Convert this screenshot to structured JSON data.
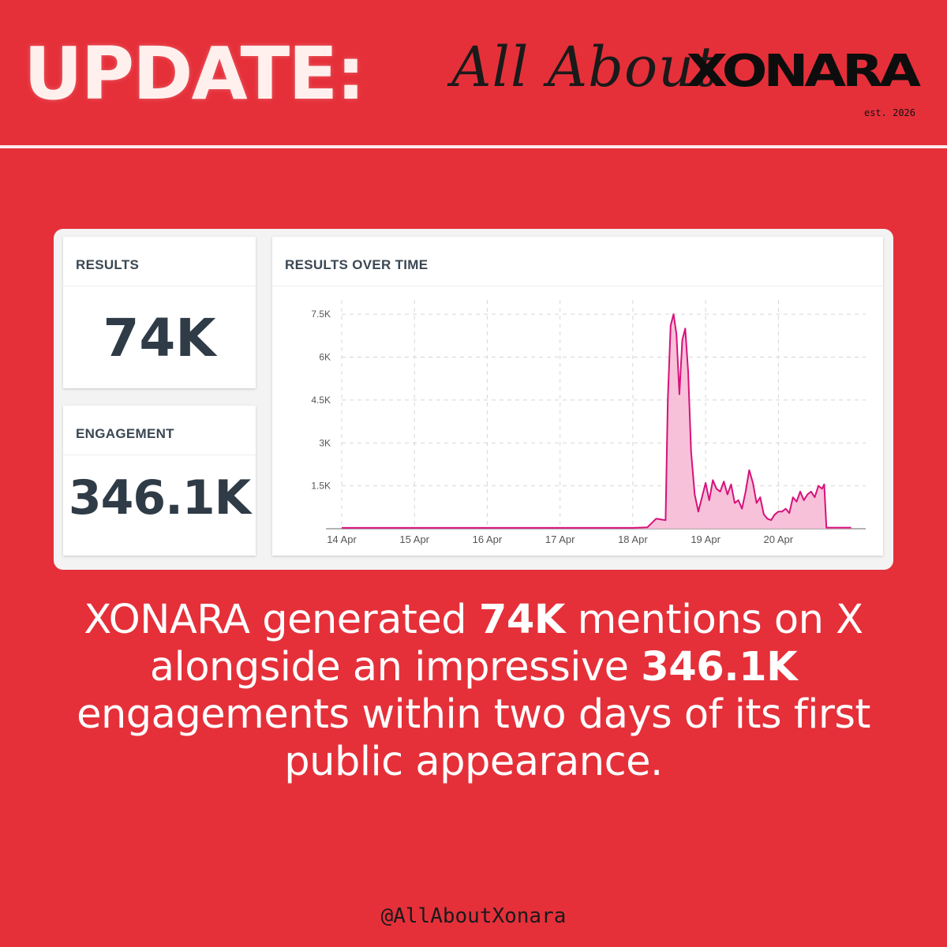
{
  "header": {
    "title": "UPDATE:",
    "brand_script": "All About",
    "brand_logo": "XONARA",
    "brand_est": "est. 2026"
  },
  "cards": {
    "results_label": "RESULTS",
    "results_value": "74K",
    "engagement_label": "ENGAGEMENT",
    "engagement_value": "346.1K"
  },
  "chart_data": {
    "type": "area",
    "title": "RESULTS OVER TIME",
    "xlabel": "",
    "ylabel": "",
    "ylim": [
      0,
      8000
    ],
    "yticks": [
      1500,
      3000,
      4500,
      6000,
      7500
    ],
    "ytick_labels": [
      "1.5K",
      "3K",
      "4.5K",
      "6K",
      "7.5K"
    ],
    "xtick_labels": [
      "14 Apr",
      "15 Apr",
      "16 Apr",
      "17 Apr",
      "18 Apr",
      "19 Apr",
      "20 Apr"
    ],
    "grid": true,
    "color": "#d6127a",
    "fill": "#f7b6d3",
    "x_range": [
      0,
      7.2
    ],
    "x": [
      0,
      4.0,
      4.2,
      4.32,
      4.45,
      4.48,
      4.52,
      4.56,
      4.6,
      4.64,
      4.68,
      4.72,
      4.76,
      4.8,
      4.85,
      4.9,
      4.95,
      5.0,
      5.05,
      5.1,
      5.15,
      5.2,
      5.25,
      5.3,
      5.35,
      5.4,
      5.45,
      5.5,
      5.55,
      5.6,
      5.65,
      5.7,
      5.75,
      5.8,
      5.85,
      5.9,
      5.95,
      6.0,
      6.05,
      6.1,
      6.15,
      6.2,
      6.25,
      6.3,
      6.35,
      6.4,
      6.45,
      6.5,
      6.55,
      6.6,
      6.63,
      6.66,
      7.0
    ],
    "values": [
      30,
      30,
      50,
      350,
      300,
      4500,
      7100,
      7500,
      6800,
      4700,
      6600,
      7000,
      5500,
      2700,
      1200,
      600,
      1100,
      1600,
      1000,
      1700,
      1400,
      1300,
      1650,
      1200,
      1550,
      900,
      1000,
      700,
      1300,
      2050,
      1600,
      900,
      1100,
      500,
      350,
      300,
      500,
      600,
      600,
      700,
      550,
      1100,
      950,
      1300,
      1000,
      1200,
      1300,
      1100,
      1500,
      1400,
      1550,
      40,
      40
    ]
  },
  "caption": {
    "p1": "XONARA generated ",
    "b1": "74K",
    "p2": " mentions on X alongside an impressive ",
    "b2": "346.1K",
    "p3": " engagements within two days of its first public appearance."
  },
  "footer": {
    "handle": "@AllAboutXonara"
  }
}
